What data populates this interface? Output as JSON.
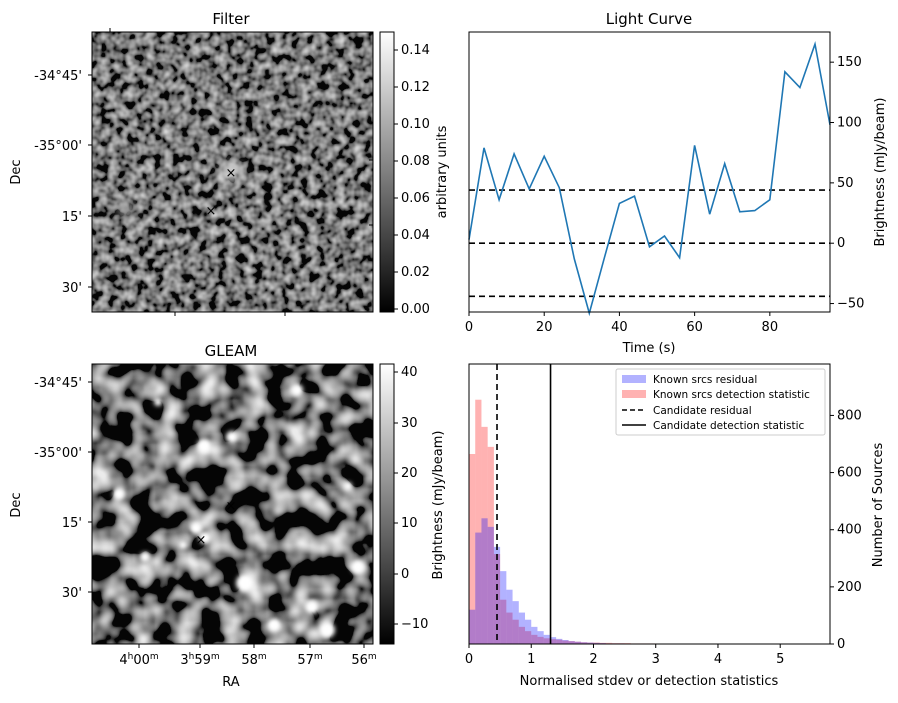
{
  "figure": {
    "panel_filter": {
      "title": "Filter",
      "ylabel": "Dec",
      "dec_ticks": [
        "-34°45'",
        "-35°00'",
        "15'",
        "30'"
      ],
      "colorbar_label": "arbitrary units",
      "colorbar_ticks": [
        "0.14",
        "0.12",
        "0.10",
        "0.08",
        "0.06",
        "0.04",
        "0.02",
        "0.00"
      ],
      "markers": {
        "candidate_color": "#ff0000",
        "reference_color": "#0000ff",
        "symbol": "×"
      }
    },
    "panel_gleam": {
      "title": "GLEAM",
      "ylabel": "Dec",
      "xlabel": "RA",
      "dec_ticks": [
        "-34°45'",
        "-35°00'",
        "15'",
        "30'"
      ],
      "ra_ticks": [
        {
          "main": "4",
          "sup1": "h",
          "mid": "00",
          "sup2": "m"
        },
        {
          "main": "3",
          "sup1": "h",
          "mid": "59",
          "sup2": "m"
        },
        {
          "main": "58",
          "sup2": "m"
        },
        {
          "main": "57",
          "sup2": "m"
        },
        {
          "main": "56",
          "sup2": "m"
        }
      ],
      "colorbar_ticks": [
        "40",
        "30",
        "20",
        "10",
        "0",
        "−10"
      ]
    }
  },
  "chart_data": [
    {
      "type": "line",
      "title": "Light Curve",
      "xlabel": "Time (s)",
      "ylabel": "Brightness (mJy/beam)",
      "x": [
        0,
        4,
        8,
        12,
        16,
        20,
        24,
        28,
        32,
        36,
        40,
        44,
        48,
        52,
        56,
        60,
        64,
        68,
        72,
        76,
        80,
        84,
        88,
        92,
        96
      ],
      "y": [
        3,
        79,
        36,
        74,
        45,
        72,
        46,
        -13,
        -58,
        -12,
        33,
        39,
        -3,
        6,
        -12,
        81,
        24,
        66,
        26,
        27,
        36,
        142,
        129,
        165,
        98
      ],
      "hlines": [
        44,
        0,
        -44
      ],
      "xlim": [
        0,
        96
      ],
      "ylim": [
        -57,
        175
      ],
      "xticks": [
        "0",
        "20",
        "40",
        "60",
        "80"
      ],
      "yticks": [
        "−50",
        "0",
        "50",
        "100",
        "150"
      ],
      "color": "#1f77b4"
    },
    {
      "type": "bar",
      "xlabel": "Normalised stdev or detection statistics",
      "ylabel_left": "Brightness (mJy/beam)",
      "ylabel_right": "Number of Sources",
      "xlim": [
        0,
        5.8
      ],
      "ylim": [
        0,
        980
      ],
      "xticks": [
        "0",
        "1",
        "2",
        "3",
        "4",
        "5"
      ],
      "yticks": [
        "0",
        "200",
        "400",
        "600",
        "800"
      ],
      "bin_width": 0.1,
      "series": [
        {
          "name": "Known srcs residual",
          "color": "#0000ff",
          "values": [
            120,
            390,
            440,
            410,
            340,
            255,
            190,
            150,
            110,
            85,
            60,
            45,
            32,
            24,
            18,
            14,
            10,
            8,
            6,
            5,
            4,
            3,
            2,
            2,
            2,
            1,
            1,
            1,
            1,
            1,
            1
          ]
        },
        {
          "name": "Known srcs detection statistic",
          "color": "#ff0000",
          "values": [
            665,
            855,
            760,
            690,
            315,
            155,
            110,
            85,
            60,
            45,
            32,
            25,
            20,
            17,
            15,
            12,
            10,
            8,
            6,
            5,
            5,
            4,
            4,
            3,
            3,
            3,
            2,
            2,
            2,
            2,
            1
          ]
        }
      ],
      "vlines": [
        {
          "name": "Candidate residual",
          "x": 0.45,
          "style": "dashed"
        },
        {
          "name": "Candidate detection statistic",
          "x": 1.31,
          "style": "solid"
        }
      ],
      "legend": "top-right"
    }
  ]
}
